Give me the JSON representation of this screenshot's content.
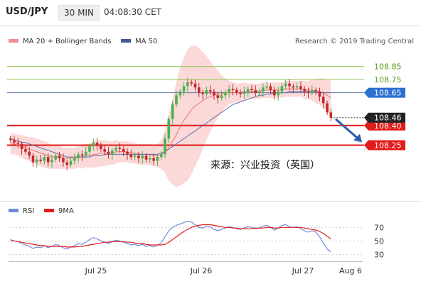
{
  "header": {
    "pair": "USD/JPY",
    "timeframe": "30 MIN",
    "time": "04:08:30 CET"
  },
  "copyright": "Research © 2019 Trading Central",
  "annotation": "来源：兴业投资（英国）",
  "colors": {
    "up": "#4caf50",
    "down": "#c62828",
    "bollinger": "#f7b9b9",
    "ma20": "#e57373",
    "ma50": "#5c6fa6",
    "support": "#e21b1b",
    "level": "#8bc34a",
    "current_tag": "#222222",
    "blue_tag": "#2d6fd2",
    "rsi": "#6f8bd8",
    "rsi_ma": "#e21b1b",
    "arrow": "#2c5ea8"
  },
  "chart_data": [
    {
      "type": "candlestick",
      "title": "USD/JPY",
      "xlabel": "",
      "ylabel": "",
      "x_tick_labels": [
        "Jul 25",
        "Jul 26",
        "Jul 27",
        "Aug 6"
      ],
      "ylim": [
        107.83,
        109.0
      ],
      "legend": [
        {
          "label": "MA 20 + Bollinger Bands",
          "color": "#f28c8c"
        },
        {
          "label": "MA 50",
          "color": "#3f5a94"
        }
      ],
      "price_levels": [
        {
          "value": 108.85,
          "label": "108.85",
          "kind": "resistance"
        },
        {
          "value": 108.75,
          "label": "108.75",
          "kind": "resistance"
        },
        {
          "value": 108.65,
          "label": "108.65",
          "kind": "ma50"
        },
        {
          "value": 108.4,
          "label": "108.40",
          "kind": "support"
        },
        {
          "value": 108.25,
          "label": "108.25",
          "kind": "support"
        }
      ],
      "current_price": {
        "value": 108.46,
        "label": "108.46"
      },
      "forecast_arrow": {
        "from": 108.46,
        "to": 108.25
      },
      "closes": [
        108.29,
        108.27,
        108.26,
        108.22,
        108.2,
        108.17,
        108.12,
        108.14,
        108.13,
        108.16,
        108.12,
        108.14,
        108.17,
        108.15,
        108.12,
        108.1,
        108.13,
        108.15,
        108.18,
        108.17,
        108.2,
        108.24,
        108.27,
        108.25,
        108.22,
        108.2,
        108.18,
        108.21,
        108.23,
        108.22,
        108.2,
        108.18,
        108.16,
        108.17,
        108.15,
        108.17,
        108.14,
        108.15,
        108.13,
        108.16,
        108.18,
        108.3,
        108.45,
        108.56,
        108.63,
        108.66,
        108.7,
        108.73,
        108.72,
        108.69,
        108.65,
        108.64,
        108.67,
        108.66,
        108.63,
        108.61,
        108.63,
        108.65,
        108.68,
        108.67,
        108.65,
        108.64,
        108.66,
        108.68,
        108.67,
        108.65,
        108.66,
        108.69,
        108.7,
        108.67,
        108.63,
        108.66,
        108.7,
        108.72,
        108.7,
        108.69,
        108.7,
        108.68,
        108.66,
        108.65,
        108.67,
        108.66,
        108.62,
        108.57,
        108.5,
        108.46
      ],
      "ma20": [
        108.26,
        108.26,
        108.25,
        108.24,
        108.23,
        108.22,
        108.21,
        108.2,
        108.19,
        108.18,
        108.17,
        108.16,
        108.16,
        108.16,
        108.15,
        108.15,
        108.15,
        108.15,
        108.16,
        108.16,
        108.17,
        108.17,
        108.18,
        108.18,
        108.19,
        108.19,
        108.19,
        108.19,
        108.2,
        108.2,
        108.2,
        108.2,
        108.19,
        108.19,
        108.18,
        108.18,
        108.18,
        108.18,
        108.17,
        108.17,
        108.18,
        108.2,
        108.23,
        108.28,
        108.33,
        108.39,
        108.44,
        108.48,
        108.52,
        108.55,
        108.57,
        108.59,
        108.61,
        108.62,
        108.63,
        108.64,
        108.64,
        108.65,
        108.65,
        108.65,
        108.65,
        108.65,
        108.66,
        108.66,
        108.66,
        108.66,
        108.66,
        108.67,
        108.67,
        108.67,
        108.67,
        108.67,
        108.67,
        108.68,
        108.68,
        108.68,
        108.68,
        108.68,
        108.67,
        108.67,
        108.67,
        108.66,
        108.66,
        108.65,
        108.63,
        108.61
      ],
      "ma50": [
        108.3,
        108.29,
        108.28,
        108.27,
        108.27,
        108.26,
        108.25,
        108.24,
        108.23,
        108.22,
        108.21,
        108.2,
        108.19,
        108.18,
        108.17,
        108.16,
        108.16,
        108.16,
        108.16,
        108.16,
        108.16,
        108.16,
        108.17,
        108.17,
        108.17,
        108.18,
        108.18,
        108.18,
        108.18,
        108.18,
        108.18,
        108.18,
        108.18,
        108.18,
        108.18,
        108.18,
        108.18,
        108.18,
        108.18,
        108.18,
        108.19,
        108.2,
        108.22,
        108.24,
        108.26,
        108.28,
        108.3,
        108.32,
        108.34,
        108.36,
        108.38,
        108.4,
        108.42,
        108.44,
        108.46,
        108.48,
        108.5,
        108.52,
        108.54,
        108.56,
        108.57,
        108.58,
        108.59,
        108.6,
        108.61,
        108.62,
        108.63,
        108.63,
        108.64,
        108.64,
        108.65,
        108.65,
        108.65,
        108.65,
        108.66,
        108.66,
        108.66,
        108.66,
        108.66,
        108.66,
        108.66,
        108.66,
        108.65,
        108.65,
        108.65,
        108.65
      ],
      "band_width": [
        0.08,
        0.08,
        0.08,
        0.09,
        0.09,
        0.09,
        0.1,
        0.1,
        0.1,
        0.1,
        0.1,
        0.09,
        0.09,
        0.09,
        0.08,
        0.08,
        0.08,
        0.08,
        0.08,
        0.09,
        0.09,
        0.09,
        0.1,
        0.1,
        0.1,
        0.1,
        0.09,
        0.09,
        0.09,
        0.08,
        0.08,
        0.08,
        0.08,
        0.08,
        0.08,
        0.08,
        0.08,
        0.08,
        0.08,
        0.09,
        0.11,
        0.16,
        0.25,
        0.33,
        0.4,
        0.45,
        0.48,
        0.5,
        0.49,
        0.46,
        0.42,
        0.37,
        0.32,
        0.27,
        0.22,
        0.18,
        0.14,
        0.11,
        0.09,
        0.08,
        0.07,
        0.07,
        0.07,
        0.06,
        0.06,
        0.06,
        0.06,
        0.06,
        0.06,
        0.06,
        0.06,
        0.06,
        0.06,
        0.06,
        0.06,
        0.06,
        0.06,
        0.06,
        0.07,
        0.07,
        0.08,
        0.09,
        0.1,
        0.11,
        0.12,
        0.13
      ]
    },
    {
      "type": "line",
      "title": "",
      "xlabel": "",
      "ylabel": "",
      "ylim": [
        22,
        85
      ],
      "y_ticks": [
        70,
        50,
        30
      ],
      "series": [
        {
          "name": "RSI",
          "color": "#6f8bd8",
          "values": [
            52,
            50,
            49,
            46,
            44,
            42,
            39,
            41,
            40,
            43,
            40,
            42,
            45,
            43,
            40,
            38,
            41,
            43,
            46,
            45,
            48,
            52,
            55,
            53,
            50,
            48,
            46,
            49,
            51,
            50,
            48,
            46,
            44,
            45,
            43,
            45,
            42,
            43,
            41,
            44,
            47,
            56,
            65,
            70,
            73,
            75,
            77,
            79,
            78,
            74,
            70,
            69,
            72,
            71,
            67,
            65,
            67,
            69,
            71,
            70,
            68,
            67,
            69,
            71,
            70,
            68,
            69,
            72,
            73,
            70,
            66,
            69,
            73,
            74,
            71,
            70,
            71,
            68,
            65,
            63,
            65,
            63,
            56,
            47,
            38,
            34
          ]
        },
        {
          "name": "9MA",
          "color": "#e21b1b",
          "values": [
            50,
            50,
            49,
            48,
            47,
            46,
            45,
            44,
            43,
            43,
            42,
            42,
            42,
            42,
            42,
            41,
            41,
            41,
            42,
            42,
            43,
            44,
            45,
            46,
            47,
            48,
            48,
            49,
            49,
            49,
            49,
            48,
            48,
            47,
            46,
            46,
            45,
            44,
            44,
            44,
            44,
            45,
            48,
            52,
            56,
            60,
            64,
            67,
            70,
            72,
            73,
            74,
            74,
            74,
            73,
            72,
            71,
            70,
            70,
            69,
            69,
            68,
            68,
            68,
            68,
            69,
            69,
            69,
            70,
            70,
            69,
            69,
            70,
            70,
            70,
            70,
            70,
            70,
            69,
            68,
            67,
            66,
            64,
            61,
            57,
            53
          ]
        }
      ],
      "x_tick_labels": [
        "Jul 25",
        "Jul 26",
        "Jul 27",
        "Aug 6"
      ]
    }
  ]
}
